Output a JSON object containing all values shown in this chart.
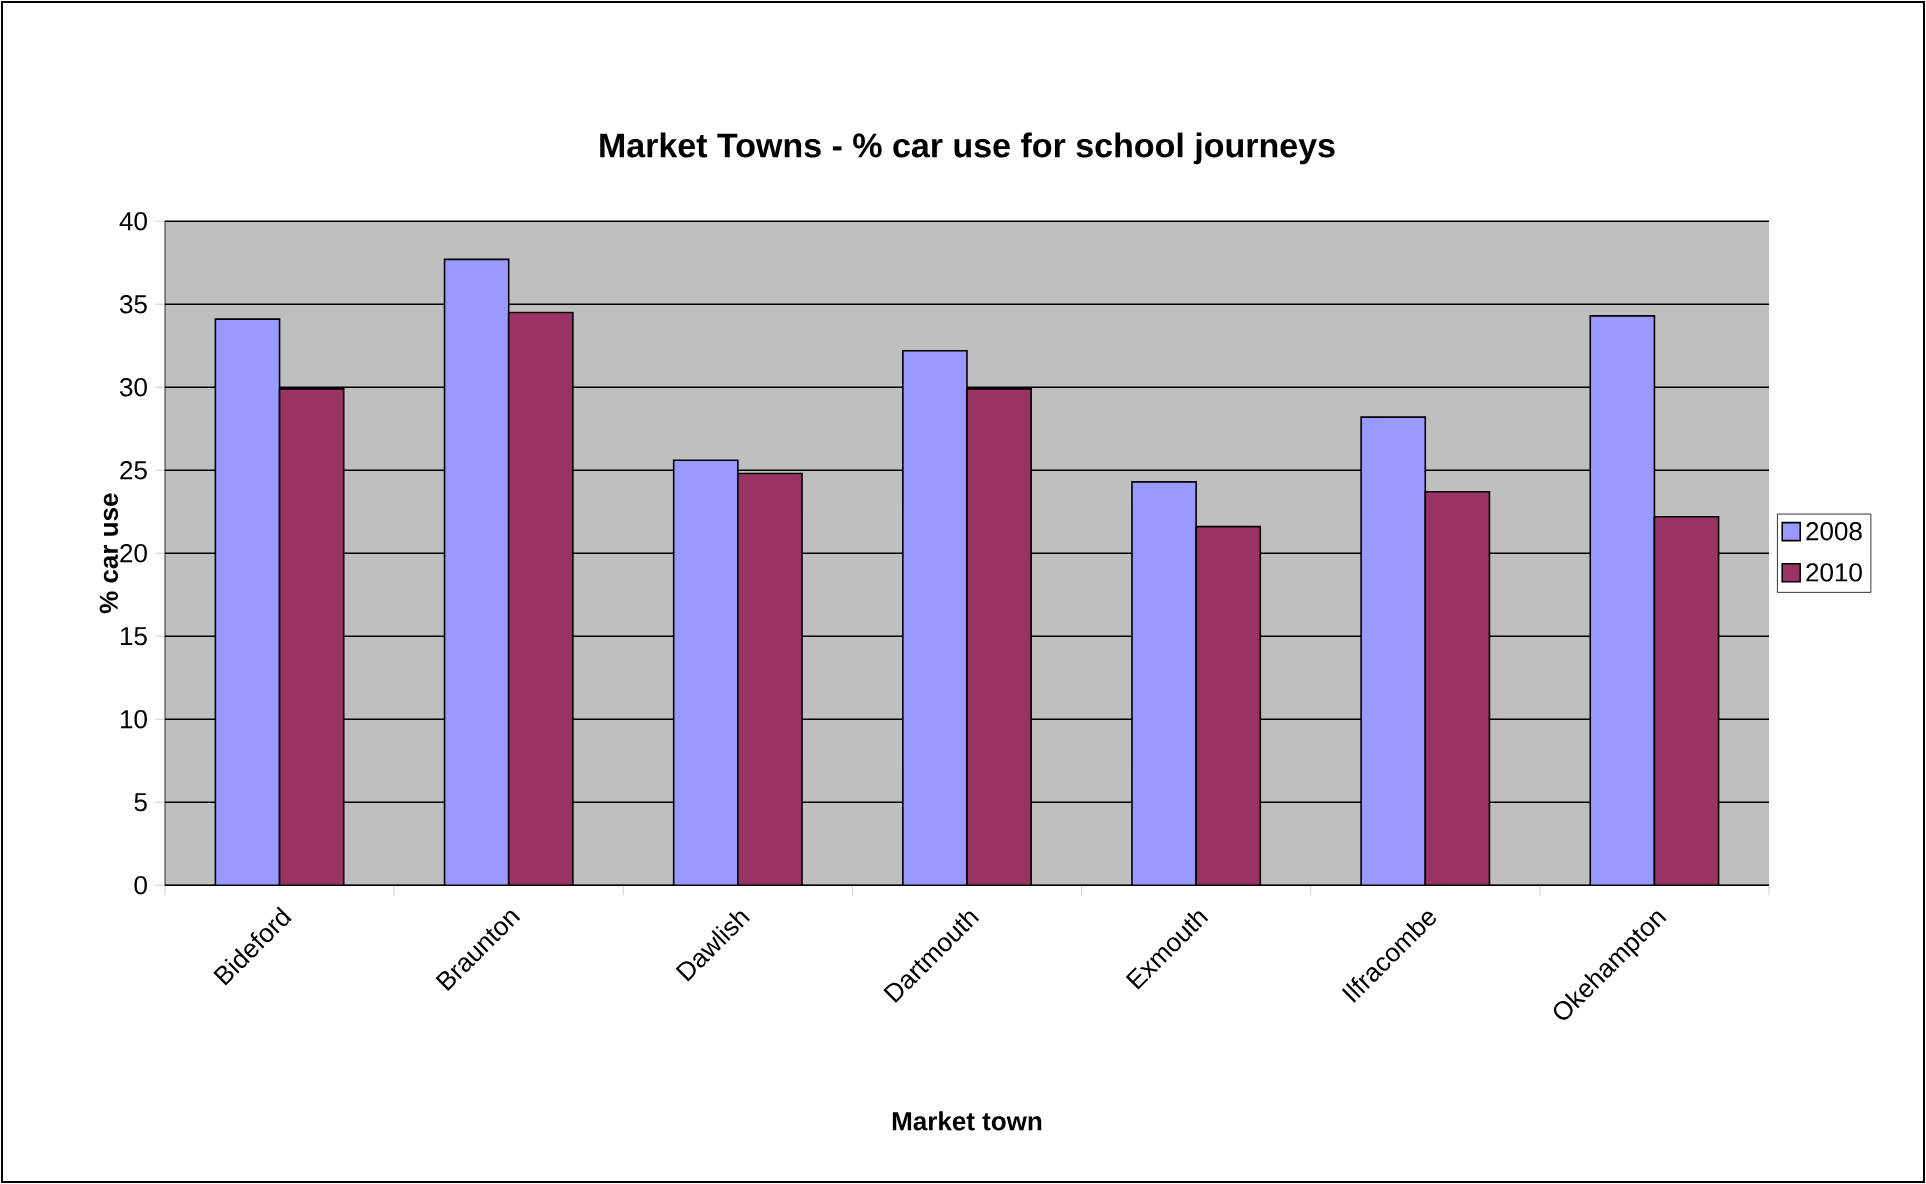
{
  "chart_data": {
    "type": "bar",
    "title": "Market Towns - % car use for school journeys",
    "xlabel": "Market town",
    "ylabel": "% car use",
    "categories": [
      "Bideford",
      "Braunton",
      "Dawlish",
      "Dartmouth",
      "Exmouth",
      "Ilfracombe",
      "Okehampton"
    ],
    "series": [
      {
        "name": "2008",
        "color": "#9999ff",
        "values": [
          34.1,
          37.7,
          25.6,
          32.2,
          24.3,
          28.2,
          34.3
        ]
      },
      {
        "name": "2010",
        "color": "#993366",
        "values": [
          29.9,
          34.5,
          24.8,
          29.9,
          21.6,
          23.7,
          22.2
        ]
      }
    ],
    "ylim": [
      0,
      40
    ],
    "yticks": [
      0,
      5,
      10,
      15,
      20,
      25,
      30,
      35,
      40
    ],
    "grid": "y",
    "legend": "right"
  }
}
